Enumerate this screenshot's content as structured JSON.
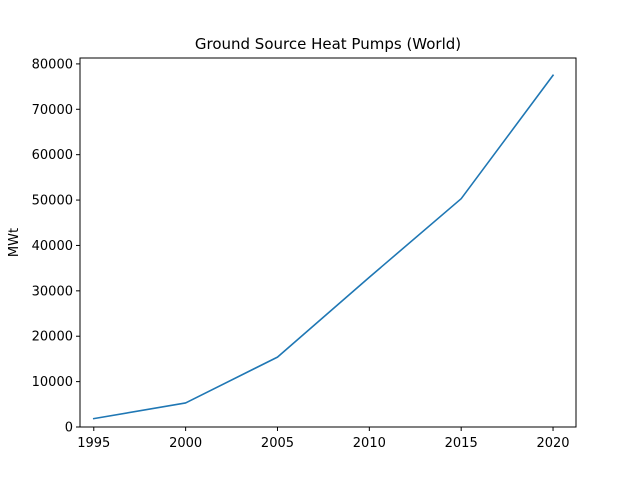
{
  "chart_data": {
    "type": "line",
    "title": "Ground Source Heat Pumps (World)",
    "xlabel": "",
    "ylabel": "MWt",
    "x": [
      1995,
      2000,
      2005,
      2010,
      2015,
      2020
    ],
    "series": [
      {
        "values": [
          1850,
          5300,
          15400,
          33000,
          50300,
          77500
        ],
        "color": "#1f77b4"
      }
    ],
    "xlim": [
      1994.25,
      2021.25
    ],
    "ylim": [
      0,
      81300
    ],
    "xticks": [
      1995,
      2000,
      2005,
      2010,
      2015,
      2020
    ],
    "xtick_labels": [
      "1995",
      "2000",
      "2005",
      "2010",
      "2015",
      "2020"
    ],
    "yticks": [
      0,
      10000,
      20000,
      30000,
      40000,
      50000,
      60000,
      70000,
      80000
    ],
    "ytick_labels": [
      "0",
      "10000",
      "20000",
      "30000",
      "40000",
      "50000",
      "60000",
      "70000",
      "80000"
    ],
    "grid": false,
    "legend": "none"
  }
}
